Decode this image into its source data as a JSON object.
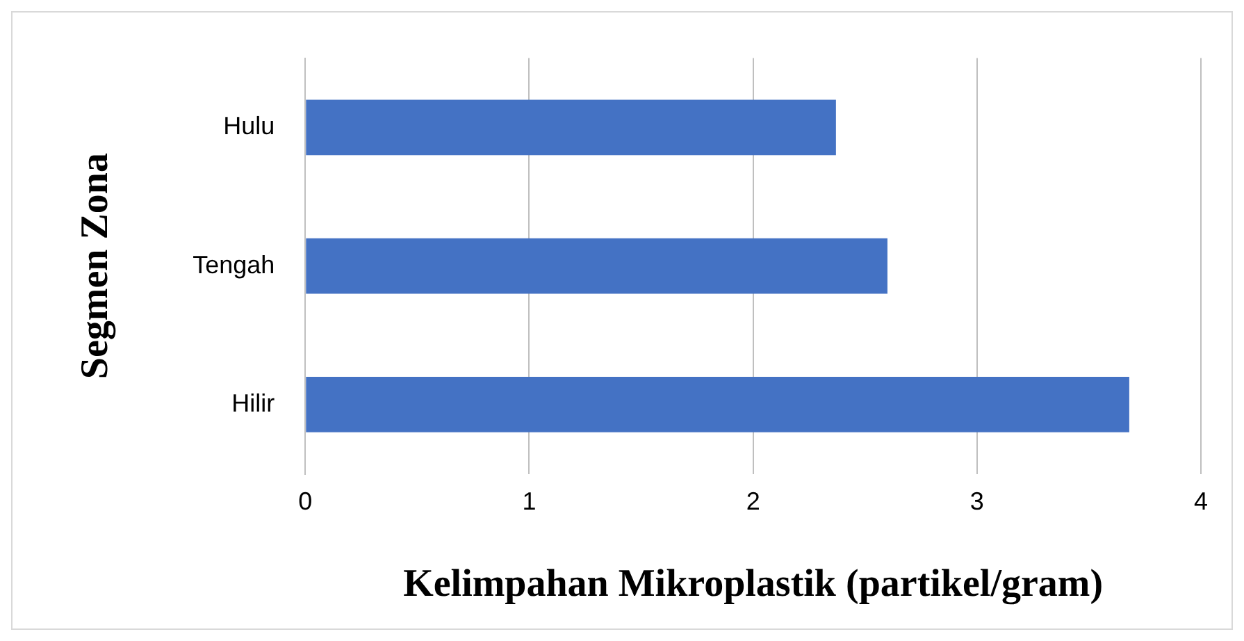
{
  "chart_data": {
    "type": "bar",
    "orientation": "horizontal",
    "categories": [
      "Hulu",
      "Tengah",
      "Hilir"
    ],
    "values": [
      2.37,
      2.6,
      3.68
    ],
    "color": "#4472c4",
    "xlim": [
      0,
      4
    ],
    "xticks": [
      0,
      1,
      2,
      3,
      4
    ],
    "xlabel": "Kelimpahan Mikroplastik (partikel/gram)",
    "ylabel": "Segmen Zona",
    "grid": "x",
    "legend": false
  }
}
